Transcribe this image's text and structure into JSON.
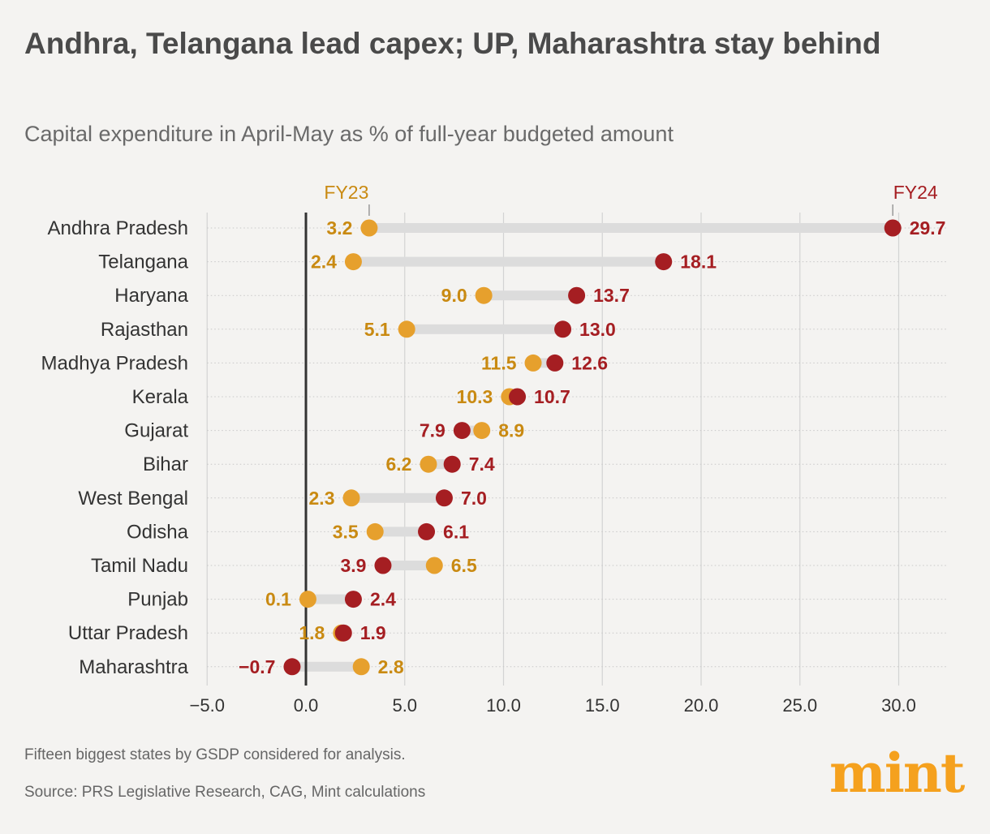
{
  "header": {
    "title": "Andhra, Telangana lead capex; UP, Maharashtra stay behind",
    "subtitle": "Capital expenditure in April-May as % of full-year budgeted amount"
  },
  "footer": {
    "note": "Fifteen biggest states by GSDP considered for analysis.",
    "source": "Source: PRS Legislative Research, CAG, Mint calculations",
    "logo": "mint"
  },
  "colors": {
    "fy23": "#e6a02d",
    "fy24": "#a51e22",
    "fy23_label": "#c98a12",
    "fy24_label": "#a51e22",
    "bar": "#dcdcdc",
    "grid": "#d3d3d3",
    "zero_line": "#333333",
    "text": "#333333"
  },
  "chart_data": {
    "type": "dot-range",
    "title": "Andhra, Telangana lead capex; UP, Maharashtra stay behind",
    "subtitle": "Capital expenditure in April-May as % of full-year budgeted amount",
    "xlim": [
      -5,
      30
    ],
    "xticks": [
      -5,
      0,
      5,
      10,
      15,
      20,
      25,
      30
    ],
    "xtick_labels": [
      "−5.0",
      "0.0",
      "5.0",
      "10.0",
      "15.0",
      "20.0",
      "25.0",
      "30.0"
    ],
    "grid": true,
    "series": [
      {
        "name": "FY23",
        "legend_label": "FY23"
      },
      {
        "name": "FY24",
        "legend_label": "FY24"
      }
    ],
    "categories": [
      "Andhra Pradesh",
      "Telangana",
      "Haryana",
      "Rajasthan",
      "Madhya Pradesh",
      "Kerala",
      "Gujarat",
      "Bihar",
      "West Bengal",
      "Odisha",
      "Tamil Nadu",
      "Punjab",
      "Uttar Pradesh",
      "Maharashtra"
    ],
    "fy23": [
      3.2,
      2.4,
      9.0,
      5.1,
      11.5,
      10.3,
      8.9,
      6.2,
      2.3,
      3.5,
      6.5,
      0.1,
      1.8,
      2.8
    ],
    "fy24": [
      29.7,
      18.1,
      13.7,
      13.0,
      12.6,
      10.7,
      7.9,
      7.4,
      7.0,
      6.1,
      3.9,
      2.4,
      1.9,
      -0.7
    ],
    "fy23_labels": [
      "3.2",
      "2.4",
      "9.0",
      "5.1",
      "11.5",
      "10.3",
      "8.9",
      "6.2",
      "2.3",
      "3.5",
      "6.5",
      "0.1",
      "1.8",
      "2.8"
    ],
    "fy24_labels": [
      "29.7",
      "18.1",
      "13.7",
      "13.0",
      "12.6",
      "10.7",
      "7.9",
      "7.4",
      "7.0",
      "6.1",
      "3.9",
      "2.4",
      "1.9",
      "−0.7"
    ]
  }
}
